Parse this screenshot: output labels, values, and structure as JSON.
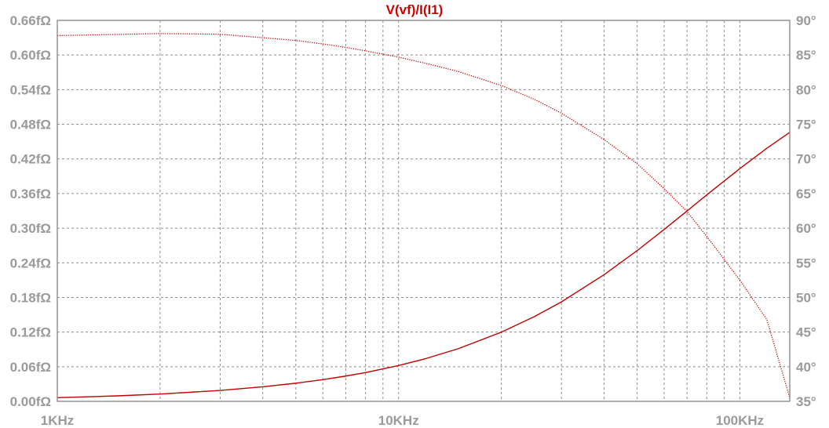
{
  "chart_data": {
    "type": "line",
    "title": "V(vf)/I(I1)",
    "x_scale": "log",
    "xlim": [
      1000,
      140000
    ],
    "x_ticks": [
      {
        "value": 1000,
        "label": "1KHz"
      },
      {
        "value": 10000,
        "label": "10KHz"
      },
      {
        "value": 100000,
        "label": "100KHz"
      }
    ],
    "y_left": {
      "lim": [
        0,
        0.66
      ],
      "unit": "fΩ",
      "ticks": [
        {
          "value": 0.0,
          "label": "0.00fΩ"
        },
        {
          "value": 0.06,
          "label": "0.06fΩ"
        },
        {
          "value": 0.12,
          "label": "0.12fΩ"
        },
        {
          "value": 0.18,
          "label": "0.18fΩ"
        },
        {
          "value": 0.24,
          "label": "0.24fΩ"
        },
        {
          "value": 0.3,
          "label": "0.30fΩ"
        },
        {
          "value": 0.36,
          "label": "0.36fΩ"
        },
        {
          "value": 0.42,
          "label": "0.42fΩ"
        },
        {
          "value": 0.48,
          "label": "0.48fΩ"
        },
        {
          "value": 0.54,
          "label": "0.54fΩ"
        },
        {
          "value": 0.6,
          "label": "0.60fΩ"
        },
        {
          "value": 0.66,
          "label": "0.66fΩ"
        }
      ]
    },
    "y_right": {
      "lim": [
        35,
        90
      ],
      "unit": "°",
      "ticks": [
        {
          "value": 35,
          "label": "35°"
        },
        {
          "value": 40,
          "label": "40°"
        },
        {
          "value": 45,
          "label": "45°"
        },
        {
          "value": 50,
          "label": "50°"
        },
        {
          "value": 55,
          "label": "55°"
        },
        {
          "value": 60,
          "label": "60°"
        },
        {
          "value": 65,
          "label": "65°"
        },
        {
          "value": 70,
          "label": "70°"
        },
        {
          "value": 75,
          "label": "75°"
        },
        {
          "value": 80,
          "label": "80°"
        },
        {
          "value": 85,
          "label": "85°"
        },
        {
          "value": 90,
          "label": "90°"
        }
      ]
    },
    "grid": true,
    "series": [
      {
        "axis": "left",
        "style": "solid",
        "color": "#c00000",
        "x": [
          1000,
          1500,
          2000,
          3000,
          4000,
          5000,
          6000,
          7000,
          8000,
          10000,
          12000,
          15000,
          20000,
          25000,
          30000,
          40000,
          50000,
          60000,
          70000,
          80000,
          100000,
          120000,
          140000
        ],
        "y": [
          0.0063,
          0.0095,
          0.0126,
          0.0189,
          0.0252,
          0.0314,
          0.0376,
          0.0438,
          0.0499,
          0.062,
          0.074,
          0.0915,
          0.1198,
          0.1468,
          0.1723,
          0.2194,
          0.2611,
          0.2978,
          0.3298,
          0.3577,
          0.4033,
          0.4386,
          0.4661
        ]
      },
      {
        "axis": "right",
        "style": "dotted",
        "color": "#c00000",
        "x": [
          1000,
          2000,
          3000,
          4000,
          5000,
          6000,
          7000,
          8000,
          10000,
          12000,
          15000,
          20000,
          25000,
          30000,
          40000,
          50000,
          60000,
          70000,
          80000,
          100000,
          120000,
          140000
        ],
        "y": [
          87.8,
          88.1,
          88.0,
          87.5,
          87.1,
          86.6,
          86.1,
          85.6,
          84.7,
          83.8,
          82.6,
          80.6,
          78.6,
          76.6,
          72.8,
          69.3,
          65.7,
          62.4,
          58.8,
          52.5,
          46.8,
          35.5
        ]
      }
    ]
  }
}
